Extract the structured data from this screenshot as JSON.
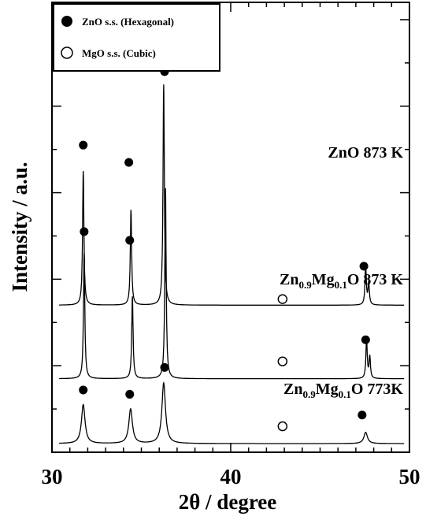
{
  "chart_data": {
    "type": "line",
    "xlabel": "2θ / degree",
    "ylabel": "Intensity / a.u.",
    "xlim": [
      30,
      50
    ],
    "x_ticks": [
      "30",
      "40",
      "50"
    ],
    "legend": {
      "placement": "top-left",
      "entries": [
        {
          "marker": "filled-circle",
          "label": "ZnO s.s. (Hexagonal)"
        },
        {
          "marker": "open-circle",
          "label": "MgO s.s. (Cubic)"
        }
      ]
    },
    "series": [
      {
        "name": "ZnO 873 K",
        "label_parts": [
          {
            "t": "ZnO 873 K"
          }
        ],
        "baseline": 1.7,
        "sharpness": "sharp",
        "peaks": [
          {
            "x": 31.75,
            "height": 1.55
          },
          {
            "x": 34.42,
            "height": 1.1
          },
          {
            "x": 36.25,
            "height": 2.55
          },
          {
            "x": 47.55,
            "height": 0.45
          },
          {
            "x": 47.72,
            "height": 0.25
          }
        ],
        "markers": [
          {
            "x": 31.75,
            "y": 3.55,
            "kind": "filled"
          },
          {
            "x": 34.3,
            "y": 3.35,
            "kind": "filled"
          },
          {
            "x": 36.3,
            "y": 4.4,
            "kind": "filled"
          },
          {
            "x": 47.45,
            "y": 2.15,
            "kind": "filled"
          },
          {
            "x": 42.9,
            "y": 1.77,
            "kind": "open"
          }
        ]
      },
      {
        "name": "Zn0.9Mg0.1O 873 K",
        "label_parts": [
          {
            "t": "Zn"
          },
          {
            "t": "0.9",
            "sub": true
          },
          {
            "t": "Mg"
          },
          {
            "t": "0.1",
            "sub": true
          },
          {
            "t": "O 873 K"
          }
        ],
        "baseline": 0.85,
        "sharpness": "sharp",
        "peaks": [
          {
            "x": 31.8,
            "height": 1.45
          },
          {
            "x": 34.5,
            "height": 0.95
          },
          {
            "x": 36.35,
            "height": 2.2
          },
          {
            "x": 47.6,
            "height": 0.45
          },
          {
            "x": 47.78,
            "height": 0.25
          }
        ],
        "markers": [
          {
            "x": 31.8,
            "y": 2.55,
            "kind": "filled"
          },
          {
            "x": 34.35,
            "y": 2.45,
            "kind": "filled"
          },
          {
            "x": 47.55,
            "y": 1.3,
            "kind": "filled"
          },
          {
            "x": 42.9,
            "y": 1.05,
            "kind": "open"
          }
        ]
      },
      {
        "name": "Zn0.9Mg0.1O 773K",
        "label_parts": [
          {
            "t": "Zn"
          },
          {
            "t": "0.9",
            "sub": true
          },
          {
            "t": "Mg"
          },
          {
            "t": "0.1",
            "sub": true
          },
          {
            "t": "O 773K"
          }
        ],
        "baseline": 0.1,
        "sharpness": "broad",
        "peaks": [
          {
            "x": 31.75,
            "height": 0.45
          },
          {
            "x": 34.4,
            "height": 0.4
          },
          {
            "x": 36.25,
            "height": 0.7
          },
          {
            "x": 47.55,
            "height": 0.13
          }
        ],
        "markers": [
          {
            "x": 31.75,
            "y": 0.72,
            "kind": "filled"
          },
          {
            "x": 34.35,
            "y": 0.67,
            "kind": "filled"
          },
          {
            "x": 36.3,
            "y": 0.98,
            "kind": "filled"
          },
          {
            "x": 47.35,
            "y": 0.43,
            "kind": "filled"
          },
          {
            "x": 42.9,
            "y": 0.3,
            "kind": "open"
          }
        ]
      }
    ]
  }
}
